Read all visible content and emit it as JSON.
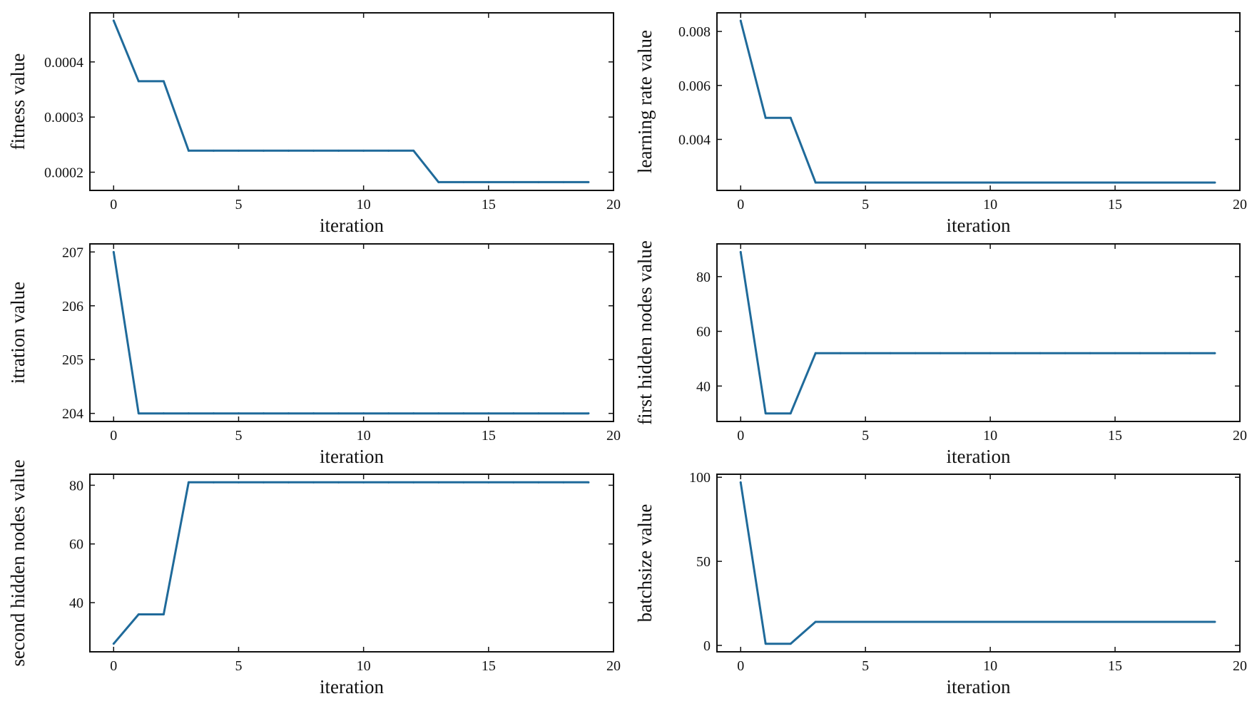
{
  "figure": {
    "line_color": "#1f6a9a"
  },
  "chart_data": [
    {
      "type": "line",
      "id": "fitness",
      "xlabel": "iteration",
      "ylabel": "fitness value",
      "x": [
        0,
        1,
        2,
        3,
        4,
        5,
        6,
        7,
        8,
        9,
        10,
        11,
        12,
        13,
        14,
        15,
        16,
        17,
        18,
        19
      ],
      "values": [
        0.000475,
        0.000365,
        0.000365,
        0.000239,
        0.000239,
        0.000239,
        0.000239,
        0.000239,
        0.000239,
        0.000239,
        0.000239,
        0.000239,
        0.000239,
        0.000182,
        0.000182,
        0.000182,
        0.000182,
        0.000182,
        0.000182,
        0.000182
      ],
      "xlim": [
        -0.95,
        20
      ],
      "ylim": [
        0.000167,
        0.000489
      ],
      "xticks": [
        0,
        5,
        10,
        15,
        20
      ],
      "xtick_labels": [
        "0",
        "5",
        "10",
        "15",
        "20"
      ],
      "yticks": [
        0.0002,
        0.0003,
        0.0004
      ],
      "ytick_labels": [
        "0.0002",
        "0.0003",
        "0.0004"
      ]
    },
    {
      "type": "line",
      "id": "learning-rate",
      "xlabel": "iteration",
      "ylabel": "learning rate value",
      "x": [
        0,
        1,
        2,
        3,
        4,
        5,
        6,
        7,
        8,
        9,
        10,
        11,
        12,
        13,
        14,
        15,
        16,
        17,
        18,
        19
      ],
      "values": [
        0.0084,
        0.0048,
        0.0048,
        0.0024,
        0.0024,
        0.0024,
        0.0024,
        0.0024,
        0.0024,
        0.0024,
        0.0024,
        0.0024,
        0.0024,
        0.0024,
        0.0024,
        0.0024,
        0.0024,
        0.0024,
        0.0024,
        0.0024
      ],
      "xlim": [
        -0.95,
        20
      ],
      "ylim": [
        0.00211,
        0.00869
      ],
      "xticks": [
        0,
        5,
        10,
        15,
        20
      ],
      "xtick_labels": [
        "0",
        "5",
        "10",
        "15",
        "20"
      ],
      "yticks": [
        0.004,
        0.006,
        0.008
      ],
      "ytick_labels": [
        "0.004",
        "0.006",
        "0.008"
      ]
    },
    {
      "type": "line",
      "id": "itration",
      "xlabel": "iteration",
      "ylabel": "itration value",
      "x": [
        0,
        1,
        2,
        3,
        4,
        5,
        6,
        7,
        8,
        9,
        10,
        11,
        12,
        13,
        14,
        15,
        16,
        17,
        18,
        19
      ],
      "values": [
        207,
        204,
        204,
        204,
        204,
        204,
        204,
        204,
        204,
        204,
        204,
        204,
        204,
        204,
        204,
        204,
        204,
        204,
        204,
        204
      ],
      "xlim": [
        -0.95,
        20
      ],
      "ylim": [
        203.85,
        207.15
      ],
      "xticks": [
        0,
        5,
        10,
        15,
        20
      ],
      "xtick_labels": [
        "0",
        "5",
        "10",
        "15",
        "20"
      ],
      "yticks": [
        204,
        205,
        206,
        207
      ],
      "ytick_labels": [
        "204",
        "205",
        "206",
        "207"
      ]
    },
    {
      "type": "line",
      "id": "first-hidden",
      "xlabel": "iteration",
      "ylabel": "first hidden nodes value",
      "x": [
        0,
        1,
        2,
        3,
        4,
        5,
        6,
        7,
        8,
        9,
        10,
        11,
        12,
        13,
        14,
        15,
        16,
        17,
        18,
        19
      ],
      "values": [
        89,
        30,
        30,
        52,
        52,
        52,
        52,
        52,
        52,
        52,
        52,
        52,
        52,
        52,
        52,
        52,
        52,
        52,
        52,
        52
      ],
      "xlim": [
        -0.95,
        20
      ],
      "ylim": [
        27.05,
        91.95
      ],
      "xticks": [
        0,
        5,
        10,
        15,
        20
      ],
      "xtick_labels": [
        "0",
        "5",
        "10",
        "15",
        "20"
      ],
      "yticks": [
        40,
        60,
        80
      ],
      "ytick_labels": [
        "40",
        "60",
        "80"
      ]
    },
    {
      "type": "line",
      "id": "second-hidden",
      "xlabel": "iteration",
      "ylabel": "second hidden nodes value",
      "x": [
        0,
        1,
        2,
        3,
        4,
        5,
        6,
        7,
        8,
        9,
        10,
        11,
        12,
        13,
        14,
        15,
        16,
        17,
        18,
        19
      ],
      "values": [
        26,
        36,
        36,
        81,
        81,
        81,
        81,
        81,
        81,
        81,
        81,
        81,
        81,
        81,
        81,
        81,
        81,
        81,
        81,
        81
      ],
      "xlim": [
        -0.95,
        20
      ],
      "ylim": [
        23.25,
        83.75
      ],
      "xticks": [
        0,
        5,
        10,
        15,
        20
      ],
      "xtick_labels": [
        "0",
        "5",
        "10",
        "15",
        "20"
      ],
      "yticks": [
        40,
        60,
        80
      ],
      "ytick_labels": [
        "40",
        "60",
        "80"
      ]
    },
    {
      "type": "line",
      "id": "batchsize",
      "xlabel": "iteration",
      "ylabel": "batchsize value",
      "x": [
        0,
        1,
        2,
        3,
        4,
        5,
        6,
        7,
        8,
        9,
        10,
        11,
        12,
        13,
        14,
        15,
        16,
        17,
        18,
        19
      ],
      "values": [
        97,
        1,
        1,
        14,
        14,
        14,
        14,
        14,
        14,
        14,
        14,
        14,
        14,
        14,
        14,
        14,
        14,
        14,
        14,
        14
      ],
      "xlim": [
        -0.95,
        20
      ],
      "ylim": [
        -3.8,
        101.8
      ],
      "xticks": [
        0,
        5,
        10,
        15,
        20
      ],
      "xtick_labels": [
        "0",
        "5",
        "10",
        "15",
        "20"
      ],
      "yticks": [
        0,
        50,
        100
      ],
      "ytick_labels": [
        "0",
        "50",
        "100"
      ]
    }
  ]
}
